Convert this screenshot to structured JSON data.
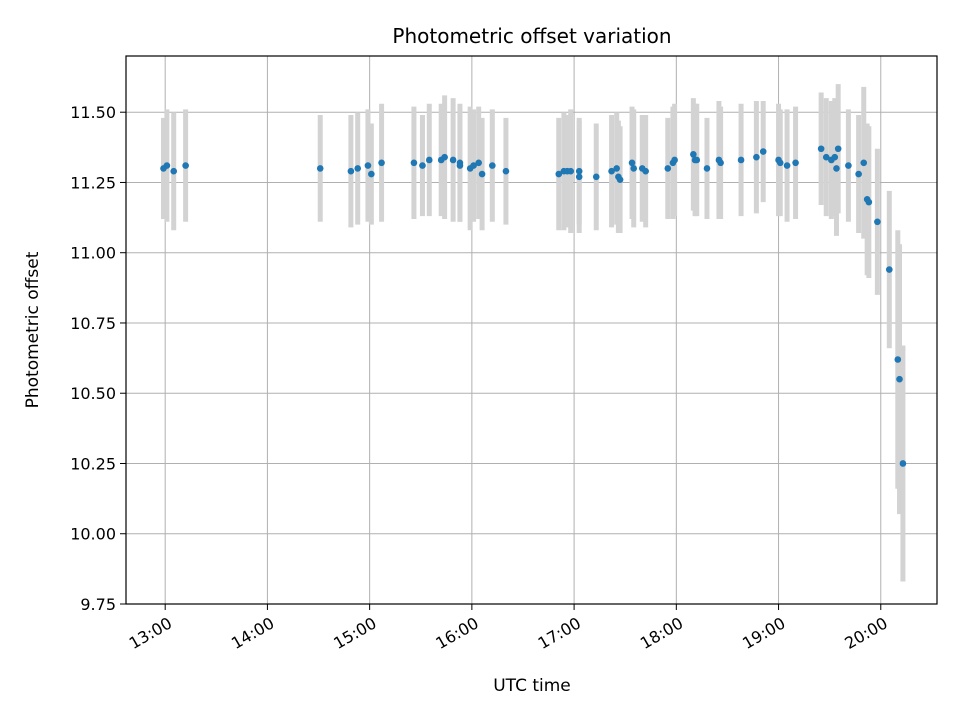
{
  "chart_data": {
    "type": "scatter",
    "title": "Photometric offset variation",
    "xlabel": "UTC time",
    "ylabel": "Photometric offset",
    "x_unit": "UTC time of day",
    "xlim": [
      "12:37",
      "20:33"
    ],
    "ylim": [
      9.75,
      11.7
    ],
    "x_ticks": [
      "13:00",
      "14:00",
      "15:00",
      "16:00",
      "17:00",
      "18:00",
      "19:00",
      "20:00"
    ],
    "y_ticks": [
      9.75,
      10.0,
      10.25,
      10.5,
      10.75,
      11.0,
      11.25,
      11.5
    ],
    "y_tick_labels": [
      "9.75",
      "10.00",
      "10.25",
      "10.50",
      "10.75",
      "11.00",
      "11.25",
      "11.50"
    ],
    "grid": true,
    "legend": "none",
    "colors": {
      "points": "#1f77b4",
      "errorbars": "#d3d3d3",
      "grid": "#b0b0b0"
    },
    "series": [
      {
        "x": [
          "12:59",
          "13:01",
          "13:05",
          "13:12",
          "14:31",
          "14:49",
          "14:53",
          "14:59",
          "15:01",
          "15:07",
          "15:26",
          "15:31",
          "15:35",
          "15:42",
          "15:44",
          "15:49",
          "15:53",
          "15:53",
          "15:59",
          "16:01",
          "16:04",
          "16:06",
          "16:12",
          "16:20",
          "16:51",
          "16:54",
          "16:56",
          "16:58",
          "17:03",
          "17:03",
          "17:13",
          "17:22",
          "17:25",
          "17:26",
          "17:27",
          "17:34",
          "17:35",
          "17:40",
          "17:42",
          "17:55",
          "17:58",
          "17:59",
          "18:10",
          "18:11",
          "18:12",
          "18:18",
          "18:25",
          "18:26",
          "18:38",
          "18:47",
          "18:51",
          "19:00",
          "19:01",
          "19:05",
          "19:10",
          "19:25",
          "19:28",
          "19:31",
          "19:33",
          "19:34",
          "19:35",
          "19:41",
          "19:47",
          "19:50",
          "19:52",
          "19:53",
          "19:58",
          "20:05",
          "20:10",
          "20:11",
          "20:13"
        ],
        "y": [
          11.3,
          11.31,
          11.29,
          11.31,
          11.3,
          11.29,
          11.3,
          11.31,
          11.28,
          11.32,
          11.32,
          11.31,
          11.33,
          11.33,
          11.34,
          11.33,
          11.32,
          11.31,
          11.3,
          11.31,
          11.32,
          11.28,
          11.31,
          11.29,
          11.28,
          11.29,
          11.29,
          11.29,
          11.27,
          11.29,
          11.27,
          11.29,
          11.3,
          11.27,
          11.26,
          11.32,
          11.3,
          11.3,
          11.29,
          11.3,
          11.32,
          11.33,
          11.35,
          11.33,
          11.33,
          11.3,
          11.33,
          11.32,
          11.33,
          11.34,
          11.36,
          11.33,
          11.32,
          11.31,
          11.32,
          11.37,
          11.34,
          11.33,
          11.34,
          11.3,
          11.37,
          11.31,
          11.28,
          11.32,
          11.19,
          11.18,
          11.11,
          10.94,
          10.62,
          10.55,
          10.25
        ],
        "yerr": [
          0.18,
          0.2,
          0.21,
          0.2,
          0.19,
          0.2,
          0.2,
          0.2,
          0.18,
          0.21,
          0.2,
          0.18,
          0.2,
          0.2,
          0.22,
          0.22,
          0.21,
          0.2,
          0.22,
          0.2,
          0.2,
          0.2,
          0.2,
          0.19,
          0.2,
          0.21,
          0.2,
          0.22,
          0.2,
          0.19,
          0.19,
          0.2,
          0.2,
          0.2,
          0.19,
          0.2,
          0.21,
          0.19,
          0.2,
          0.18,
          0.2,
          0.2,
          0.2,
          0.2,
          0.2,
          0.18,
          0.21,
          0.2,
          0.2,
          0.2,
          0.18,
          0.2,
          0.19,
          0.2,
          0.2,
          0.2,
          0.21,
          0.21,
          0.21,
          0.24,
          0.23,
          0.2,
          0.21,
          0.27,
          0.27,
          0.27,
          0.26,
          0.28,
          0.46,
          0.48,
          0.42
        ]
      }
    ]
  }
}
